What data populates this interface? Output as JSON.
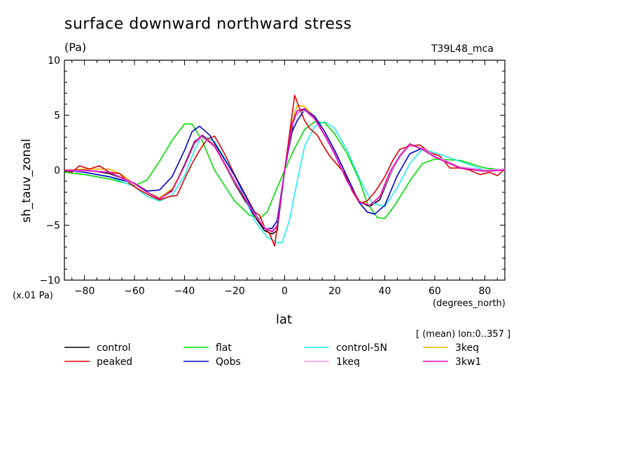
{
  "chart_data": {
    "type": "line",
    "title": "surface downward northward stress",
    "units": "(Pa)",
    "model_label": "T39L48_mca",
    "scale_note": "(x.01 Pa)",
    "xlabel": "lat",
    "xunits": "(degrees_north)",
    "ylabel": "sh_tauv_zonal",
    "average_note": "[ (mean) lon:0..357 ]",
    "xlim": [
      -88,
      88
    ],
    "ylim": [
      -10,
      10
    ],
    "xticks": [
      -80,
      -60,
      -40,
      -20,
      0,
      20,
      40,
      60,
      80
    ],
    "xtick_labels": [
      "−80",
      "−60",
      "−40",
      "−20",
      "0",
      "20",
      "40",
      "60",
      "80"
    ],
    "yticks": [
      -10,
      -5,
      0,
      5,
      10
    ],
    "ytick_labels": [
      "−10",
      "−5",
      "0",
      "5",
      "10"
    ],
    "legend_placement": "bottom",
    "series": [
      {
        "name": "control",
        "color": "#000000",
        "x": [
          -88,
          -80,
          -70,
          -60,
          -55,
          -50,
          -45,
          -40,
          -36,
          -33,
          -28,
          -20,
          -12,
          -8,
          -5,
          -3,
          0,
          4,
          8,
          12,
          16,
          20,
          25,
          30,
          34,
          38,
          42,
          46,
          50,
          55,
          60,
          70,
          80,
          88
        ],
        "y": [
          -0.1,
          0.0,
          -0.3,
          -1.2,
          -2.0,
          -2.6,
          -1.8,
          0.5,
          2.6,
          3.1,
          2.2,
          -1.2,
          -4.2,
          -5.5,
          -5.8,
          -5.5,
          0.0,
          5.0,
          5.6,
          4.6,
          3.2,
          1.5,
          -1.0,
          -2.9,
          -3.3,
          -2.7,
          -0.5,
          1.3,
          2.3,
          1.9,
          1.2,
          0.2,
          -0.1,
          0.1
        ]
      },
      {
        "name": "flat",
        "color": "#00dd00",
        "x": [
          -88,
          -80,
          -70,
          -60,
          -55,
          -50,
          -45,
          -40,
          -37,
          -33,
          -28,
          -20,
          -14,
          -10,
          -7,
          -3,
          0,
          4,
          8,
          12,
          16,
          20,
          25,
          30,
          33,
          37,
          40,
          44,
          50,
          55,
          60,
          70,
          80,
          88
        ],
        "y": [
          -0.2,
          -0.4,
          -0.8,
          -1.4,
          -0.9,
          0.8,
          2.7,
          4.2,
          4.2,
          2.7,
          0.0,
          -2.8,
          -4.1,
          -4.4,
          -3.8,
          -1.6,
          0.0,
          2.0,
          3.7,
          4.4,
          4.3,
          3.3,
          1.5,
          -1.0,
          -3.0,
          -4.3,
          -4.4,
          -3.2,
          -1.0,
          0.6,
          1.0,
          0.9,
          0.2,
          0.0
        ]
      },
      {
        "name": "control-5N",
        "color": "#22eeee",
        "x": [
          -88,
          -80,
          -70,
          -60,
          -55,
          -50,
          -45,
          -40,
          -36,
          -33,
          -28,
          -20,
          -12,
          -7,
          -3,
          -1,
          2,
          5,
          8,
          12,
          16,
          20,
          25,
          30,
          35,
          40,
          45,
          50,
          55,
          60,
          70,
          80,
          88
        ],
        "y": [
          0.0,
          -0.2,
          -0.6,
          -1.5,
          -2.4,
          -2.8,
          -2.3,
          -0.5,
          1.8,
          3.2,
          2.6,
          -0.4,
          -4.6,
          -6.1,
          -6.6,
          -6.6,
          -4.5,
          -1.0,
          2.2,
          4.0,
          4.4,
          3.8,
          1.8,
          -0.8,
          -3.0,
          -3.3,
          -1.6,
          0.6,
          1.9,
          1.6,
          0.8,
          0.0,
          0.1
        ]
      },
      {
        "name": "3keq",
        "color": "#f0b000",
        "x": [
          -88,
          -80,
          -70,
          -65,
          -60,
          -55,
          -50,
          -45,
          -40,
          -36,
          -33,
          -28,
          -20,
          -12,
          -8,
          -5,
          -3,
          0,
          3,
          5,
          8,
          12,
          16,
          20,
          25,
          30,
          34,
          38,
          42,
          46,
          50,
          55,
          60,
          70,
          80,
          88
        ],
        "y": [
          0.0,
          0.1,
          0.1,
          -0.4,
          -1.3,
          -2.0,
          -2.5,
          -1.7,
          0.4,
          2.5,
          3.2,
          2.3,
          -1.0,
          -4.0,
          -5.3,
          -5.6,
          -5.0,
          0.0,
          4.4,
          5.9,
          5.8,
          4.8,
          3.2,
          1.5,
          -1.0,
          -2.8,
          -3.2,
          -2.4,
          -0.3,
          1.2,
          2.3,
          1.9,
          1.2,
          0.2,
          -0.1,
          0.0
        ]
      },
      {
        "name": "peaked",
        "color": "#dd0000",
        "x": [
          -88,
          -85,
          -82,
          -78,
          -74,
          -70,
          -66,
          -62,
          -58,
          -54,
          -50,
          -46,
          -43,
          -40,
          -37,
          -34,
          -31,
          -28,
          -24,
          -20,
          -16,
          -12,
          -10,
          -8,
          -6,
          -4,
          0,
          4,
          6,
          8,
          10,
          13,
          16,
          18,
          21,
          24,
          27,
          30,
          33,
          36,
          40,
          43,
          46,
          50,
          54,
          58,
          62,
          66,
          70,
          74,
          78,
          82,
          85,
          88
        ],
        "y": [
          0.0,
          -0.2,
          0.4,
          0.1,
          0.4,
          -0.2,
          -0.3,
          -1.2,
          -1.8,
          -2.3,
          -2.7,
          -2.4,
          -2.3,
          -0.8,
          0.6,
          1.8,
          2.8,
          3.1,
          1.5,
          -0.4,
          -2.1,
          -3.8,
          -4.1,
          -5.2,
          -5.8,
          -6.9,
          0.0,
          6.8,
          5.6,
          4.5,
          3.8,
          3.2,
          2.0,
          1.3,
          0.5,
          -0.3,
          -1.9,
          -3.0,
          -2.8,
          -2.0,
          -0.6,
          0.8,
          1.9,
          2.2,
          2.3,
          1.6,
          1.3,
          0.2,
          0.2,
          0.0,
          -0.4,
          -0.2,
          -0.5,
          0.1
        ]
      },
      {
        "name": "Qobs",
        "color": "#0000cc",
        "x": [
          -88,
          -80,
          -70,
          -60,
          -55,
          -50,
          -45,
          -40,
          -37,
          -34,
          -30,
          -20,
          -12,
          -8,
          -5,
          -3,
          0,
          3,
          5,
          8,
          12,
          16,
          20,
          25,
          30,
          33,
          36,
          40,
          45,
          50,
          55,
          60,
          70,
          80,
          88
        ],
        "y": [
          0.0,
          -0.2,
          -0.6,
          -1.2,
          -1.9,
          -1.8,
          -0.6,
          1.8,
          3.5,
          4.0,
          3.2,
          -0.5,
          -3.9,
          -5.3,
          -5.3,
          -4.6,
          0.0,
          3.5,
          4.5,
          5.5,
          4.9,
          3.5,
          1.8,
          -0.6,
          -3.0,
          -3.8,
          -4.0,
          -3.2,
          -0.5,
          1.5,
          2.0,
          1.3,
          0.3,
          0.0,
          0.1
        ]
      },
      {
        "name": "1keq",
        "color": "#ee99dd",
        "x": [
          -88,
          -80,
          -70,
          -60,
          -55,
          -50,
          -45,
          -40,
          -36,
          -33,
          -28,
          -20,
          -12,
          -8,
          -5,
          -3,
          0,
          3,
          5,
          8,
          12,
          16,
          20,
          25,
          30,
          34,
          38,
          42,
          46,
          50,
          55,
          60,
          70,
          80,
          88
        ],
        "y": [
          0.0,
          -0.1,
          -0.2,
          -1.3,
          -2.0,
          -2.6,
          -1.9,
          0.4,
          2.4,
          3.0,
          2.1,
          -1.1,
          -4.0,
          -5.2,
          -5.5,
          -5.0,
          0.0,
          4.0,
          5.2,
          5.4,
          4.6,
          3.1,
          1.4,
          -1.0,
          -2.9,
          -3.2,
          -2.5,
          -0.4,
          1.2,
          2.2,
          2.0,
          1.3,
          0.3,
          0.0,
          0.1
        ]
      },
      {
        "name": "3kw1",
        "color": "#dd00bb",
        "x": [
          -88,
          -80,
          -70,
          -60,
          -55,
          -50,
          -45,
          -40,
          -36,
          -33,
          -28,
          -20,
          -12,
          -8,
          -5,
          -3,
          0,
          3,
          5,
          8,
          12,
          16,
          20,
          25,
          30,
          34,
          38,
          42,
          46,
          50,
          55,
          60,
          70,
          80,
          88
        ],
        "y": [
          0.0,
          0.0,
          -0.2,
          -1.2,
          -2.0,
          -2.6,
          -1.9,
          0.4,
          2.5,
          3.2,
          2.2,
          -1.0,
          -4.1,
          -5.3,
          -5.6,
          -5.1,
          0.0,
          4.2,
          5.4,
          5.6,
          4.7,
          3.2,
          1.5,
          -1.0,
          -2.9,
          -3.2,
          -2.4,
          -0.2,
          1.3,
          2.4,
          1.9,
          1.2,
          0.2,
          -0.1,
          0.0
        ]
      }
    ]
  }
}
